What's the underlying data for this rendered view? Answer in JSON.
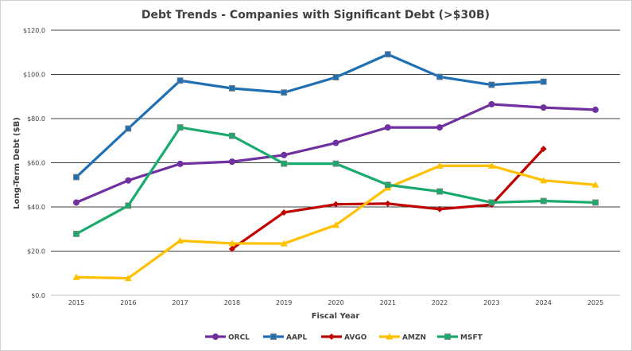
{
  "chart_data": {
    "type": "line",
    "title": "Debt Trends - Companies with Significant Debt (>$30B)",
    "xlabel": "Fiscal Year",
    "ylabel": "Long-Term Debt ($B)",
    "x": [
      "2015",
      "2016",
      "2017",
      "2018",
      "2019",
      "2020",
      "2021",
      "2022",
      "2023",
      "2024",
      "2025"
    ],
    "ylim": [
      0,
      120
    ],
    "yticks": [
      0,
      20,
      40,
      60,
      80,
      100,
      120
    ],
    "ytick_labels": [
      "$0.0",
      "$20.0",
      "$40.0",
      "$60.0",
      "$80.0",
      "$100.0",
      "$120.0"
    ],
    "grid": true,
    "legend_position": "bottom",
    "series": [
      {
        "name": "ORCL",
        "color": "#7030a0",
        "marker": "circle",
        "values": [
          42,
          52,
          59.5,
          60.5,
          63.5,
          69,
          76,
          76,
          86.5,
          85,
          84
        ]
      },
      {
        "name": "AAPL",
        "color": "#1f6fb5",
        "marker": "square",
        "values": [
          53.5,
          75.5,
          97.2,
          93.7,
          91.8,
          98.7,
          109.1,
          98.9,
          95.3,
          96.7,
          null
        ]
      },
      {
        "name": "AVGO",
        "color": "#c00000",
        "marker": "diamond",
        "values": [
          null,
          null,
          null,
          21,
          37.5,
          41.2,
          41.5,
          39,
          41,
          66.3,
          null
        ]
      },
      {
        "name": "AMZN",
        "color": "#ffc000",
        "marker": "triangle",
        "values": [
          8.2,
          7.7,
          24.7,
          23.5,
          23.4,
          31.8,
          48.7,
          58.6,
          58.6,
          52,
          50
        ]
      },
      {
        "name": "MSFT",
        "color": "#1aab6c",
        "marker": "square",
        "values": [
          27.8,
          40.6,
          76,
          72.2,
          59.6,
          59.6,
          50,
          47,
          42,
          42.7,
          42
        ]
      }
    ]
  }
}
